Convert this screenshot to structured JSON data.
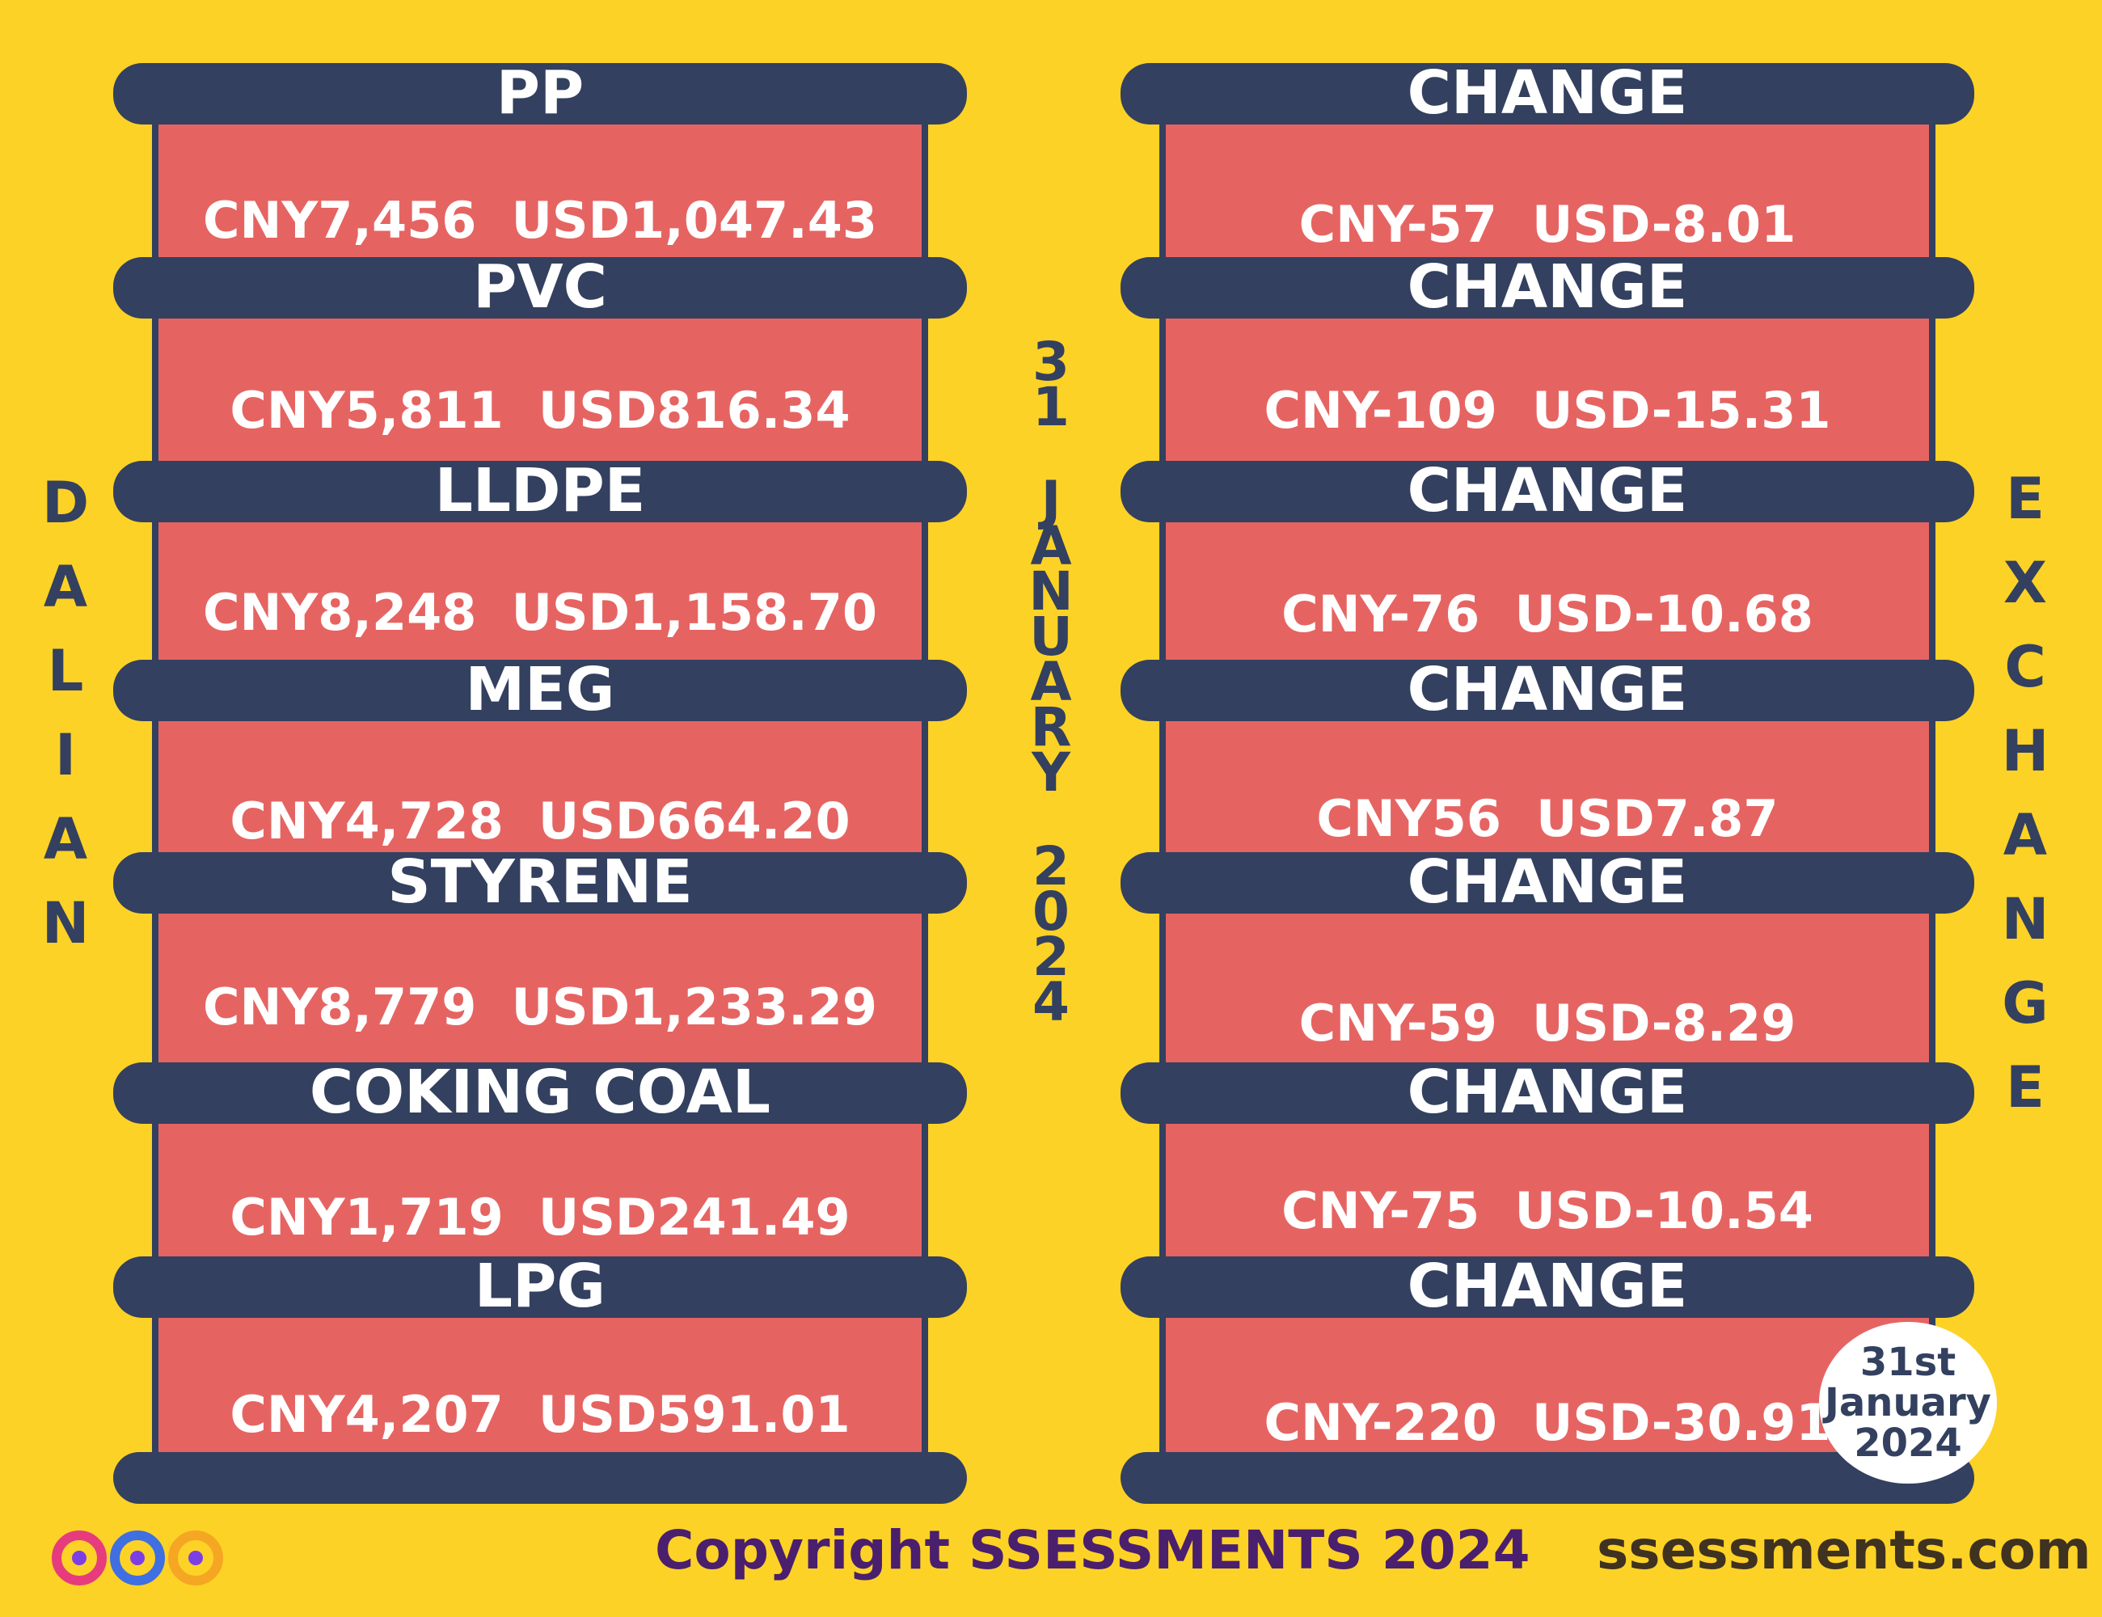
{
  "exchange_left": [
    "D",
    "A",
    "L",
    "I",
    "A",
    "N"
  ],
  "exchange_right": [
    "E",
    "X",
    "C",
    "H",
    "A",
    "N",
    "G",
    "E"
  ],
  "date_vertical": {
    "day": [
      "3",
      "1"
    ],
    "month": [
      "J",
      "A",
      "N",
      "U",
      "A",
      "R",
      "Y"
    ],
    "year": [
      "2",
      "0",
      "2",
      "4"
    ]
  },
  "products": [
    {
      "name": "PP",
      "value": "CNY7,456  USD1,047.43"
    },
    {
      "name": "PVC",
      "value": "CNY5,811  USD816.34"
    },
    {
      "name": "LLDPE",
      "value": "CNY8,248  USD1,158.70"
    },
    {
      "name": "MEG",
      "value": "CNY4,728  USD664.20"
    },
    {
      "name": "STYRENE",
      "value": "CNY8,779  USD1,233.29"
    },
    {
      "name": "COKING COAL",
      "value": "CNY1,719  USD241.49"
    },
    {
      "name": "LPG",
      "value": "CNY4,207  USD591.01"
    }
  ],
  "changes": [
    {
      "label": "CHANGE",
      "value": "CNY-57  USD-8.01"
    },
    {
      "label": "CHANGE",
      "value": "CNY-109  USD-15.31"
    },
    {
      "label": "CHANGE",
      "value": "CNY-76  USD-10.68"
    },
    {
      "label": "CHANGE",
      "value": "CNY56  USD7.87"
    },
    {
      "label": "CHANGE",
      "value": "CNY-59  USD-8.29"
    },
    {
      "label": "CHANGE",
      "value": "CNY-75  USD-10.54"
    },
    {
      "label": "CHANGE",
      "value": "CNY-220  USD-30.91"
    }
  ],
  "sticker": [
    "31st",
    "January",
    "2024"
  ],
  "footer": {
    "copyright": "Copyright SSESSMENTS 2024",
    "website": "ssessments.com"
  },
  "colors": {
    "background": "#FDD226",
    "bar": "#33405F",
    "box": "#E56462",
    "text": "#FFFFFF"
  }
}
